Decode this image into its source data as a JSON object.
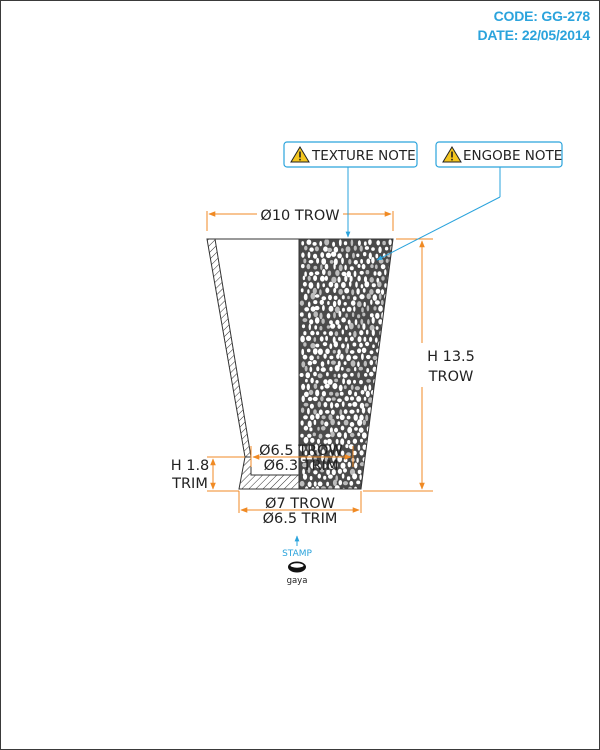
{
  "header": {
    "code": "CODE: GG-278",
    "date": "DATE: 22/05/2014"
  },
  "notes": {
    "texture": "TEXTURE NOTE",
    "engobe": "ENGOBE NOTE",
    "note_icon": "warning-triangle-icon"
  },
  "dimensions": {
    "top_diameter": "Ø10 TROW",
    "height_line1": "H 13.5",
    "height_line2": "TROW",
    "inner_bottom_trow": "Ø6.5 TROW",
    "inner_bottom_trim": "Ø6.3 TRIM",
    "foot_height_line1": "H 1.8",
    "foot_height_line2": "TRIM",
    "base_trow": "Ø7 TROW",
    "base_trim": "Ø6.5 TRIM"
  },
  "stamp": {
    "label": "STAMP",
    "brand": "gaya"
  },
  "colors": {
    "accent_blue": "#2aa3dc",
    "dimension_orange": "#f08a24",
    "texture_dark": "#4a4a4a",
    "outline": "#333333"
  }
}
